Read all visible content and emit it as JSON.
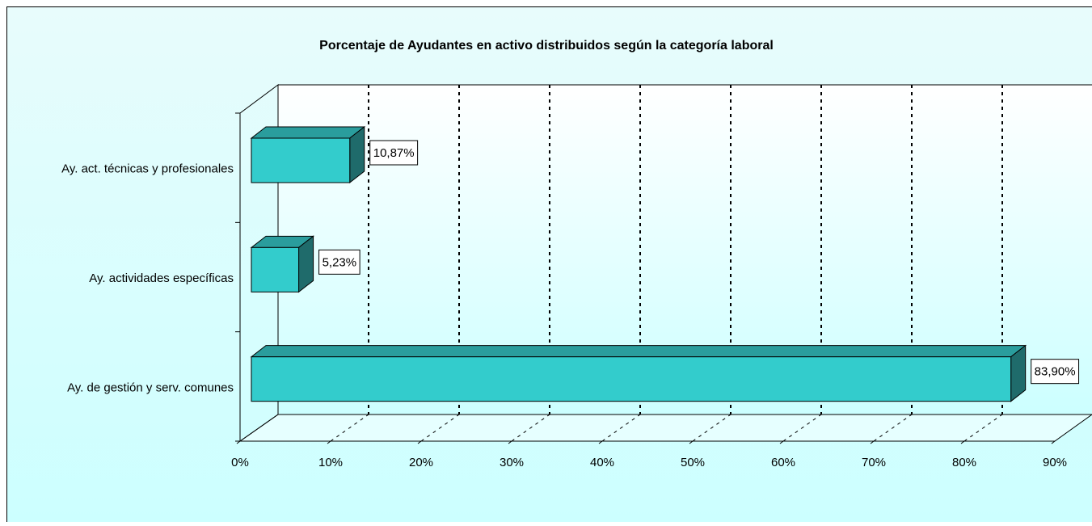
{
  "chart_data": {
    "type": "bar3d_horizontal",
    "title": "Porcentaje de Ayudantes en activo distribuidos según la categoría laboral",
    "categories": [
      "Ay. act. técnicas y profesionales",
      "Ay. actividades específicas",
      "Ay. de gestión y serv. comunes"
    ],
    "values": [
      10.87,
      5.23,
      83.9
    ],
    "value_labels": [
      "10,87%",
      "5,23%",
      "83,90%"
    ],
    "color": "#33cccc",
    "xlim": [
      0,
      90
    ],
    "xticks": [
      {
        "value": 0,
        "label": "0%"
      },
      {
        "value": 10,
        "label": "10%"
      },
      {
        "value": 20,
        "label": "20%"
      },
      {
        "value": 30,
        "label": "30%"
      },
      {
        "value": 40,
        "label": "40%"
      },
      {
        "value": 50,
        "label": "50%"
      },
      {
        "value": 60,
        "label": "60%"
      },
      {
        "value": 70,
        "label": "70%"
      },
      {
        "value": 80,
        "label": "80%"
      },
      {
        "value": 90,
        "label": "90%"
      }
    ],
    "grid": true
  }
}
